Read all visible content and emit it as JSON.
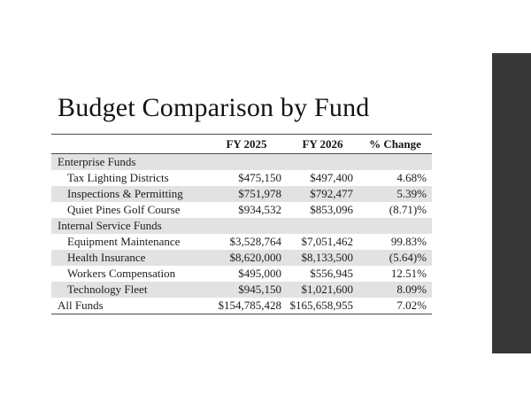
{
  "slide": {
    "title": "Budget Comparison by Fund"
  },
  "table": {
    "column_headers": [
      "FY 2025",
      "FY 2026",
      "% Change"
    ],
    "rows": [
      {
        "type": "section",
        "name": "Enterprise Funds"
      },
      {
        "type": "fund",
        "name": "Tax Lighting Districts",
        "fy2025": "$475,150",
        "fy2026": "$497,400",
        "change": "4.68%"
      },
      {
        "type": "fund",
        "name": "Inspections & Permitting",
        "fy2025": "$751,978",
        "fy2026": "$792,477",
        "change": "5.39%"
      },
      {
        "type": "fund",
        "name": "Quiet Pines Golf Course",
        "fy2025": "$934,532",
        "fy2026": "$853,096",
        "change": "(8.71)%"
      },
      {
        "type": "section",
        "name": "Internal Service Funds"
      },
      {
        "type": "fund",
        "name": "Equipment Maintenance",
        "fy2025": "$3,528,764",
        "fy2026": "$7,051,462",
        "change": "99.83%"
      },
      {
        "type": "fund",
        "name": "Health Insurance",
        "fy2025": "$8,620,000",
        "fy2026": "$8,133,500",
        "change": "(5.64)%"
      },
      {
        "type": "fund",
        "name": "Workers Compensation",
        "fy2025": "$495,000",
        "fy2026": "$556,945",
        "change": "12.51%"
      },
      {
        "type": "fund",
        "name": "Technology Fleet",
        "fy2025": "$945,150",
        "fy2026": "$1,021,600",
        "change": "8.09%"
      },
      {
        "type": "total",
        "name": "All Funds",
        "fy2025": "$154,785,428",
        "fy2026": "$165,658,955",
        "change": "7.02%"
      }
    ]
  },
  "colors": {
    "background": "#ffffff",
    "text": "#1c1c1c",
    "row_stripe": "#e2e2e2",
    "table_border": "#4a4a4a",
    "accent_bar": "#373737"
  }
}
